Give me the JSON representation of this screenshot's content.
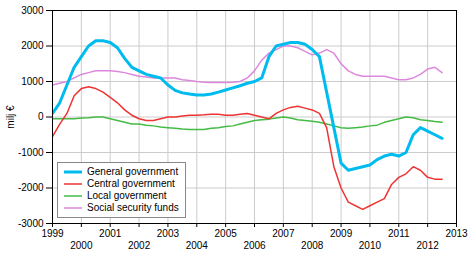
{
  "chart_data": {
    "type": "line",
    "ylabel": "milj €",
    "x": [
      1999.0,
      1999.25,
      1999.5,
      1999.75,
      2000.0,
      2000.25,
      2000.5,
      2000.75,
      2001.0,
      2001.25,
      2001.5,
      2001.75,
      2002.0,
      2002.25,
      2002.5,
      2002.75,
      2003.0,
      2003.25,
      2003.5,
      2003.75,
      2004.0,
      2004.25,
      2004.5,
      2004.75,
      2005.0,
      2005.25,
      2005.5,
      2005.75,
      2006.0,
      2006.25,
      2006.5,
      2006.75,
      2007.0,
      2007.25,
      2007.5,
      2007.75,
      2008.0,
      2008.25,
      2008.5,
      2008.75,
      2009.0,
      2009.25,
      2009.5,
      2009.75,
      2010.0,
      2010.25,
      2010.5,
      2010.75,
      2011.0,
      2011.25,
      2011.5,
      2011.75,
      2012.0,
      2012.25,
      2012.5
    ],
    "series": [
      {
        "name": "General government",
        "color": "#00bbee",
        "values": [
          100,
          400,
          900,
          1400,
          1700,
          2000,
          2150,
          2150,
          2100,
          1950,
          1650,
          1400,
          1300,
          1200,
          1150,
          1100,
          900,
          750,
          680,
          650,
          620,
          620,
          650,
          700,
          760,
          820,
          880,
          950,
          1000,
          1100,
          1700,
          2000,
          2050,
          2100,
          2100,
          2050,
          1900,
          1700,
          700,
          -300,
          -1300,
          -1500,
          -1450,
          -1400,
          -1350,
          -1200,
          -1100,
          -1050,
          -1100,
          -1000,
          -500,
          -300,
          -400,
          -500,
          -600
        ]
      },
      {
        "name": "Central government",
        "color": "#ee3333",
        "values": [
          -550,
          -200,
          100,
          600,
          800,
          850,
          800,
          700,
          550,
          400,
          200,
          50,
          -50,
          -100,
          -100,
          -50,
          0,
          0,
          30,
          50,
          50,
          60,
          80,
          80,
          50,
          50,
          80,
          100,
          50,
          0,
          -50,
          100,
          200,
          270,
          300,
          250,
          200,
          100,
          -300,
          -1400,
          -2000,
          -2400,
          -2500,
          -2600,
          -2500,
          -2400,
          -2300,
          -1900,
          -1700,
          -1600,
          -1400,
          -1500,
          -1700,
          -1750,
          -1750
        ]
      },
      {
        "name": "Local government",
        "color": "#44bb44",
        "values": [
          -50,
          -50,
          -50,
          -50,
          -30,
          -20,
          0,
          0,
          -50,
          -100,
          -150,
          -200,
          -200,
          -230,
          -250,
          -280,
          -300,
          -320,
          -340,
          -350,
          -350,
          -350,
          -320,
          -300,
          -270,
          -250,
          -200,
          -150,
          -100,
          -80,
          -60,
          -30,
          0,
          -30,
          -80,
          -100,
          -120,
          -150,
          -200,
          -250,
          -300,
          -320,
          -300,
          -280,
          -250,
          -230,
          -150,
          -100,
          -50,
          0,
          -20,
          -80,
          -100,
          -130,
          -150
        ]
      },
      {
        "name": "Social security funds",
        "color": "#dd88dd",
        "values": [
          900,
          950,
          1000,
          1100,
          1200,
          1250,
          1300,
          1300,
          1300,
          1280,
          1250,
          1200,
          1150,
          1130,
          1100,
          1100,
          1100,
          1100,
          1050,
          1030,
          1000,
          980,
          970,
          970,
          970,
          980,
          1000,
          1100,
          1300,
          1600,
          1800,
          1900,
          2000,
          2000,
          1950,
          1850,
          1750,
          1800,
          1900,
          1800,
          1500,
          1300,
          1200,
          1150,
          1150,
          1150,
          1150,
          1100,
          1050,
          1050,
          1100,
          1200,
          1350,
          1400,
          1250
        ]
      }
    ],
    "xlim": [
      1999.0,
      2013.0
    ],
    "xticks": [
      1999,
      2000,
      2001,
      2002,
      2003,
      2004,
      2005,
      2006,
      2007,
      2008,
      2009,
      2010,
      2011,
      2012,
      2013
    ],
    "ylim": [
      -3000,
      3000
    ],
    "yticks": [
      -3000,
      -2000,
      -1000,
      0,
      1000,
      2000,
      3000
    ],
    "grid": true,
    "legend": "lower left"
  }
}
